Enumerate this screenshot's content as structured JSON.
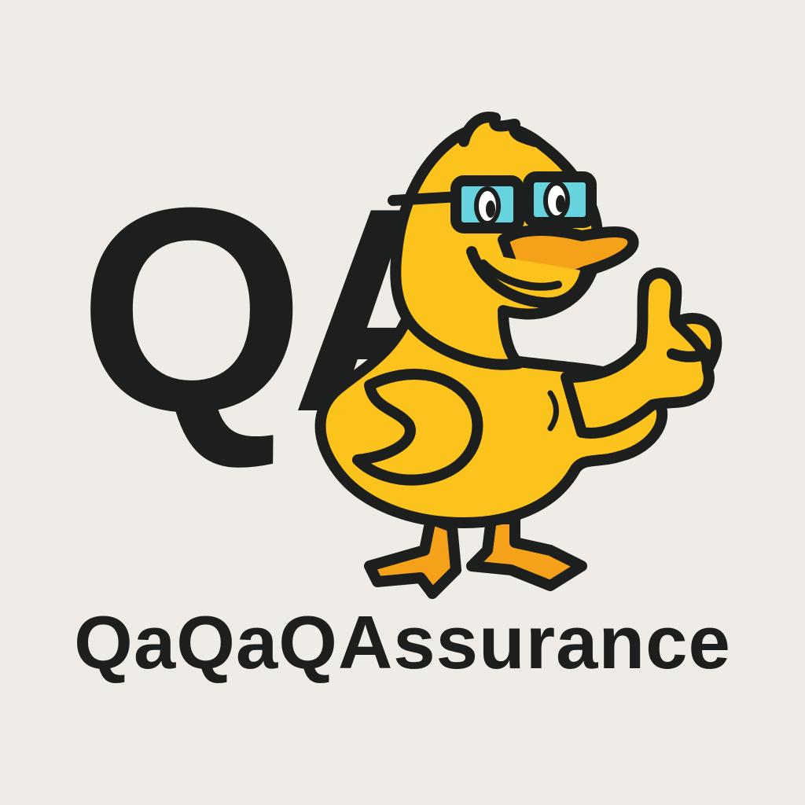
{
  "logo": {
    "monogram": "QA",
    "wordmark": "QaQaQAssurance",
    "mascot": "duck-mascot-with-glasses-thumbs-up"
  },
  "colors": {
    "background": "#efebe6",
    "ink": "#1c1f1d",
    "duck_yellow": "#fbc31b",
    "beak_orange": "#f5a21a",
    "glasses_cyan": "#67d3de"
  }
}
